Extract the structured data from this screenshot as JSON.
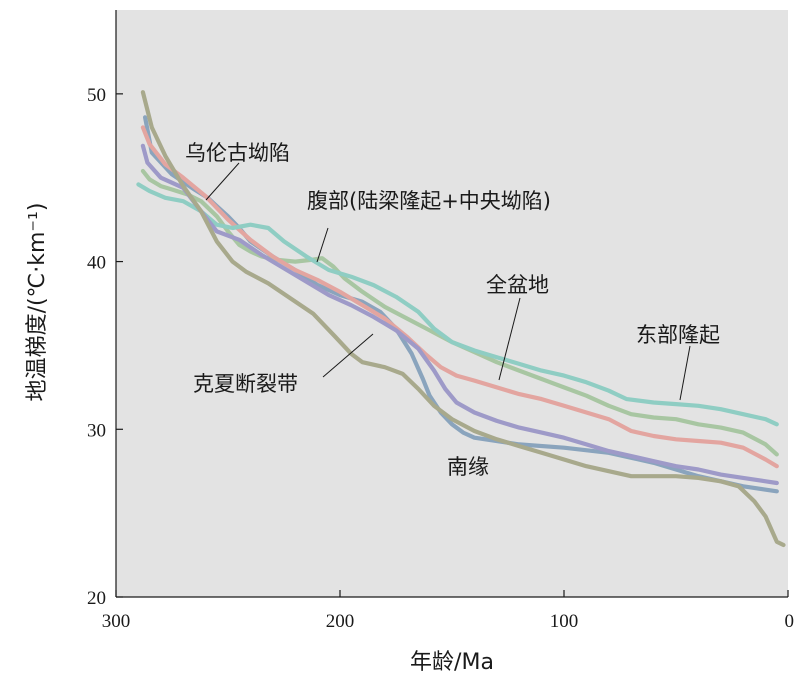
{
  "chart_data": {
    "type": "line",
    "xlabel": "年龄/Ma",
    "ylabel": "地温梯度/(℃·km⁻¹)",
    "xlim": [
      300,
      0
    ],
    "ylim": [
      20,
      55
    ],
    "x_ticks": [
      "300",
      "200",
      "100",
      "0"
    ],
    "y_ticks": [
      "20",
      "30",
      "40",
      "50"
    ],
    "grid": false,
    "background": "#e3e3e3",
    "series": [
      {
        "name": "乌伦古坳陷",
        "color": "#8aa4bd",
        "points": [
          [
            287,
            48.6
          ],
          [
            284,
            46.5
          ],
          [
            275,
            45.2
          ],
          [
            265,
            44.3
          ],
          [
            259,
            43.8
          ],
          [
            255,
            43.3
          ],
          [
            250,
            42.7
          ],
          [
            245,
            42.0
          ],
          [
            240,
            41.2
          ],
          [
            230,
            40.3
          ],
          [
            220,
            39.5
          ],
          [
            210,
            38.6
          ],
          [
            200,
            38.0
          ],
          [
            190,
            37.6
          ],
          [
            182,
            37.0
          ],
          [
            175,
            36.0
          ],
          [
            168,
            34.5
          ],
          [
            163,
            33.0
          ],
          [
            160,
            32.0
          ],
          [
            155,
            31.0
          ],
          [
            150,
            30.3
          ],
          [
            145,
            29.8
          ],
          [
            140,
            29.5
          ],
          [
            130,
            29.3
          ],
          [
            120,
            29.1
          ],
          [
            100,
            28.9
          ],
          [
            80,
            28.6
          ],
          [
            60,
            28.0
          ],
          [
            40,
            27.2
          ],
          [
            20,
            26.6
          ],
          [
            5,
            26.3
          ]
        ]
      },
      {
        "name": "腹部(陆梁隆起+中央坳陷)",
        "color": "#a8c6a2",
        "points": [
          [
            288,
            45.4
          ],
          [
            285,
            44.9
          ],
          [
            280,
            44.5
          ],
          [
            275,
            44.3
          ],
          [
            268,
            44.0
          ],
          [
            262,
            43.6
          ],
          [
            255,
            42.7
          ],
          [
            250,
            41.8
          ],
          [
            245,
            41.0
          ],
          [
            240,
            40.6
          ],
          [
            235,
            40.3
          ],
          [
            228,
            40.1
          ],
          [
            220,
            40.0
          ],
          [
            213,
            40.1
          ],
          [
            208,
            40.2
          ],
          [
            203,
            39.7
          ],
          [
            198,
            39.0
          ],
          [
            190,
            38.2
          ],
          [
            180,
            37.3
          ],
          [
            170,
            36.6
          ],
          [
            160,
            35.9
          ],
          [
            150,
            35.2
          ],
          [
            140,
            34.6
          ],
          [
            130,
            34.0
          ],
          [
            120,
            33.5
          ],
          [
            110,
            33.0
          ],
          [
            100,
            32.5
          ],
          [
            90,
            32.0
          ],
          [
            80,
            31.4
          ],
          [
            70,
            30.9
          ],
          [
            60,
            30.7
          ],
          [
            50,
            30.6
          ],
          [
            40,
            30.3
          ],
          [
            30,
            30.1
          ],
          [
            20,
            29.8
          ],
          [
            10,
            29.1
          ],
          [
            5,
            28.5
          ]
        ]
      },
      {
        "name": "全盆地",
        "color": "#e3a5a0",
        "points": [
          [
            288,
            48.0
          ],
          [
            285,
            47.0
          ],
          [
            278,
            45.8
          ],
          [
            270,
            45.0
          ],
          [
            260,
            43.9
          ],
          [
            250,
            42.5
          ],
          [
            240,
            41.3
          ],
          [
            230,
            40.3
          ],
          [
            220,
            39.5
          ],
          [
            210,
            38.9
          ],
          [
            200,
            38.2
          ],
          [
            190,
            37.4
          ],
          [
            180,
            36.6
          ],
          [
            170,
            35.5
          ],
          [
            162,
            34.5
          ],
          [
            155,
            33.7
          ],
          [
            148,
            33.2
          ],
          [
            140,
            32.9
          ],
          [
            130,
            32.5
          ],
          [
            120,
            32.1
          ],
          [
            110,
            31.8
          ],
          [
            100,
            31.4
          ],
          [
            90,
            31.0
          ],
          [
            80,
            30.6
          ],
          [
            70,
            29.9
          ],
          [
            60,
            29.6
          ],
          [
            50,
            29.4
          ],
          [
            40,
            29.3
          ],
          [
            30,
            29.2
          ],
          [
            20,
            28.9
          ],
          [
            10,
            28.2
          ],
          [
            5,
            27.8
          ]
        ]
      },
      {
        "name": "东部隆起",
        "color": "#8fcdc3",
        "points": [
          [
            290,
            44.6
          ],
          [
            285,
            44.2
          ],
          [
            278,
            43.8
          ],
          [
            270,
            43.6
          ],
          [
            262,
            43.0
          ],
          [
            255,
            42.2
          ],
          [
            248,
            42.0
          ],
          [
            240,
            42.2
          ],
          [
            232,
            42.0
          ],
          [
            225,
            41.2
          ],
          [
            215,
            40.3
          ],
          [
            205,
            39.5
          ],
          [
            195,
            39.1
          ],
          [
            185,
            38.6
          ],
          [
            175,
            37.9
          ],
          [
            165,
            37.0
          ],
          [
            158,
            36.0
          ],
          [
            150,
            35.2
          ],
          [
            140,
            34.7
          ],
          [
            130,
            34.3
          ],
          [
            120,
            33.9
          ],
          [
            110,
            33.5
          ],
          [
            100,
            33.2
          ],
          [
            90,
            32.8
          ],
          [
            80,
            32.3
          ],
          [
            72,
            31.8
          ],
          [
            60,
            31.6
          ],
          [
            50,
            31.5
          ],
          [
            40,
            31.4
          ],
          [
            30,
            31.2
          ],
          [
            20,
            30.9
          ],
          [
            10,
            30.6
          ],
          [
            5,
            30.3
          ]
        ]
      },
      {
        "name": "克夏断裂带",
        "color": "#9e9ac8",
        "points": [
          [
            288,
            46.9
          ],
          [
            286,
            45.9
          ],
          [
            280,
            45.0
          ],
          [
            270,
            44.4
          ],
          [
            262,
            43.0
          ],
          [
            255,
            41.8
          ],
          [
            245,
            41.3
          ],
          [
            235,
            40.4
          ],
          [
            225,
            39.6
          ],
          [
            215,
            38.8
          ],
          [
            205,
            38.0
          ],
          [
            195,
            37.4
          ],
          [
            185,
            36.7
          ],
          [
            175,
            35.9
          ],
          [
            165,
            34.8
          ],
          [
            158,
            33.5
          ],
          [
            153,
            32.4
          ],
          [
            148,
            31.6
          ],
          [
            140,
            31.0
          ],
          [
            130,
            30.5
          ],
          [
            120,
            30.1
          ],
          [
            110,
            29.8
          ],
          [
            100,
            29.5
          ],
          [
            90,
            29.1
          ],
          [
            80,
            28.7
          ],
          [
            70,
            28.4
          ],
          [
            60,
            28.1
          ],
          [
            50,
            27.8
          ],
          [
            40,
            27.6
          ],
          [
            30,
            27.3
          ],
          [
            20,
            27.1
          ],
          [
            10,
            26.9
          ],
          [
            5,
            26.8
          ]
        ]
      },
      {
        "name": "南缘",
        "color": "#a8a98c",
        "points": [
          [
            288,
            50.1
          ],
          [
            284,
            48.0
          ],
          [
            278,
            46.3
          ],
          [
            270,
            44.5
          ],
          [
            262,
            43.0
          ],
          [
            255,
            41.2
          ],
          [
            248,
            40.0
          ],
          [
            242,
            39.4
          ],
          [
            232,
            38.7
          ],
          [
            222,
            37.8
          ],
          [
            212,
            36.9
          ],
          [
            202,
            35.5
          ],
          [
            195,
            34.5
          ],
          [
            190,
            34.0
          ],
          [
            180,
            33.7
          ],
          [
            172,
            33.3
          ],
          [
            165,
            32.4
          ],
          [
            158,
            31.4
          ],
          [
            150,
            30.6
          ],
          [
            140,
            29.9
          ],
          [
            130,
            29.4
          ],
          [
            120,
            29.0
          ],
          [
            110,
            28.6
          ],
          [
            100,
            28.2
          ],
          [
            90,
            27.8
          ],
          [
            80,
            27.5
          ],
          [
            70,
            27.2
          ],
          [
            60,
            27.2
          ],
          [
            50,
            27.2
          ],
          [
            40,
            27.1
          ],
          [
            30,
            26.9
          ],
          [
            22,
            26.6
          ],
          [
            15,
            25.7
          ],
          [
            10,
            24.8
          ],
          [
            5,
            23.3
          ],
          [
            2,
            23.1
          ]
        ]
      }
    ],
    "annotations": [
      {
        "text": "乌伦古坳陷",
        "series": "乌伦古坳陷"
      },
      {
        "text": "腹部(陆梁隆起+中央坳陷)",
        "series": "腹部(陆梁隆起+中央坳陷)"
      },
      {
        "text": "全盆地",
        "series": "全盆地"
      },
      {
        "text": "东部隆起",
        "series": "东部隆起"
      },
      {
        "text": "克夏断裂带",
        "series": "克夏断裂带"
      },
      {
        "text": "南缘",
        "series": "南缘"
      }
    ]
  }
}
